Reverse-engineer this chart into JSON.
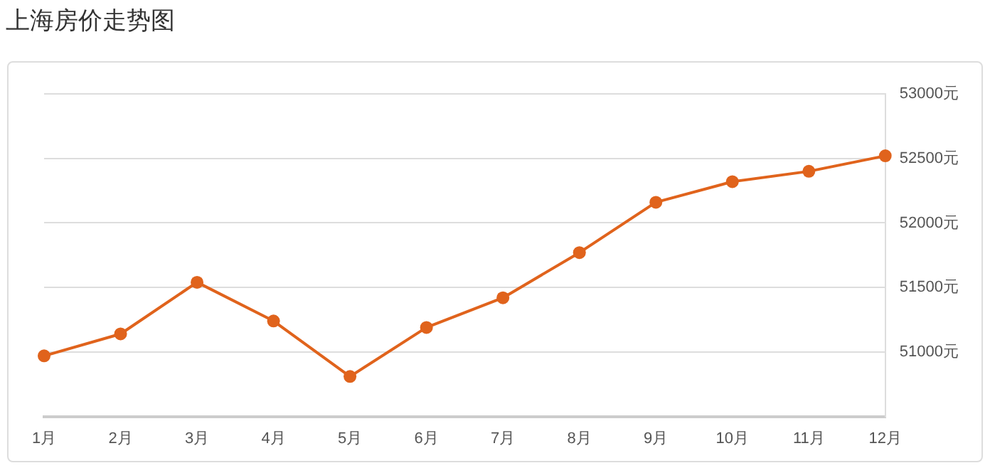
{
  "chart_data": {
    "type": "line",
    "title": "上海房价走势图",
    "categories": [
      "1月",
      "2月",
      "3月",
      "4月",
      "5月",
      "6月",
      "7月",
      "8月",
      "9月",
      "10月",
      "11月",
      "12月"
    ],
    "series": [
      {
        "color": "#e0631c",
        "values": [
          50970,
          51140,
          51540,
          51240,
          50810,
          51190,
          51420,
          51770,
          52160,
          52320,
          52400,
          52520
        ]
      }
    ],
    "ylim": [
      50500,
      53000
    ],
    "yticks": [
      {
        "value": 51000,
        "label": "51000元"
      },
      {
        "value": 51500,
        "label": "51500元"
      },
      {
        "value": 52000,
        "label": "52000元"
      },
      {
        "value": 52500,
        "label": "52500元"
      },
      {
        "value": 53000,
        "label": "53000元"
      }
    ],
    "grid": "y",
    "legend": false,
    "marker": "circle",
    "line_style": "solid"
  }
}
